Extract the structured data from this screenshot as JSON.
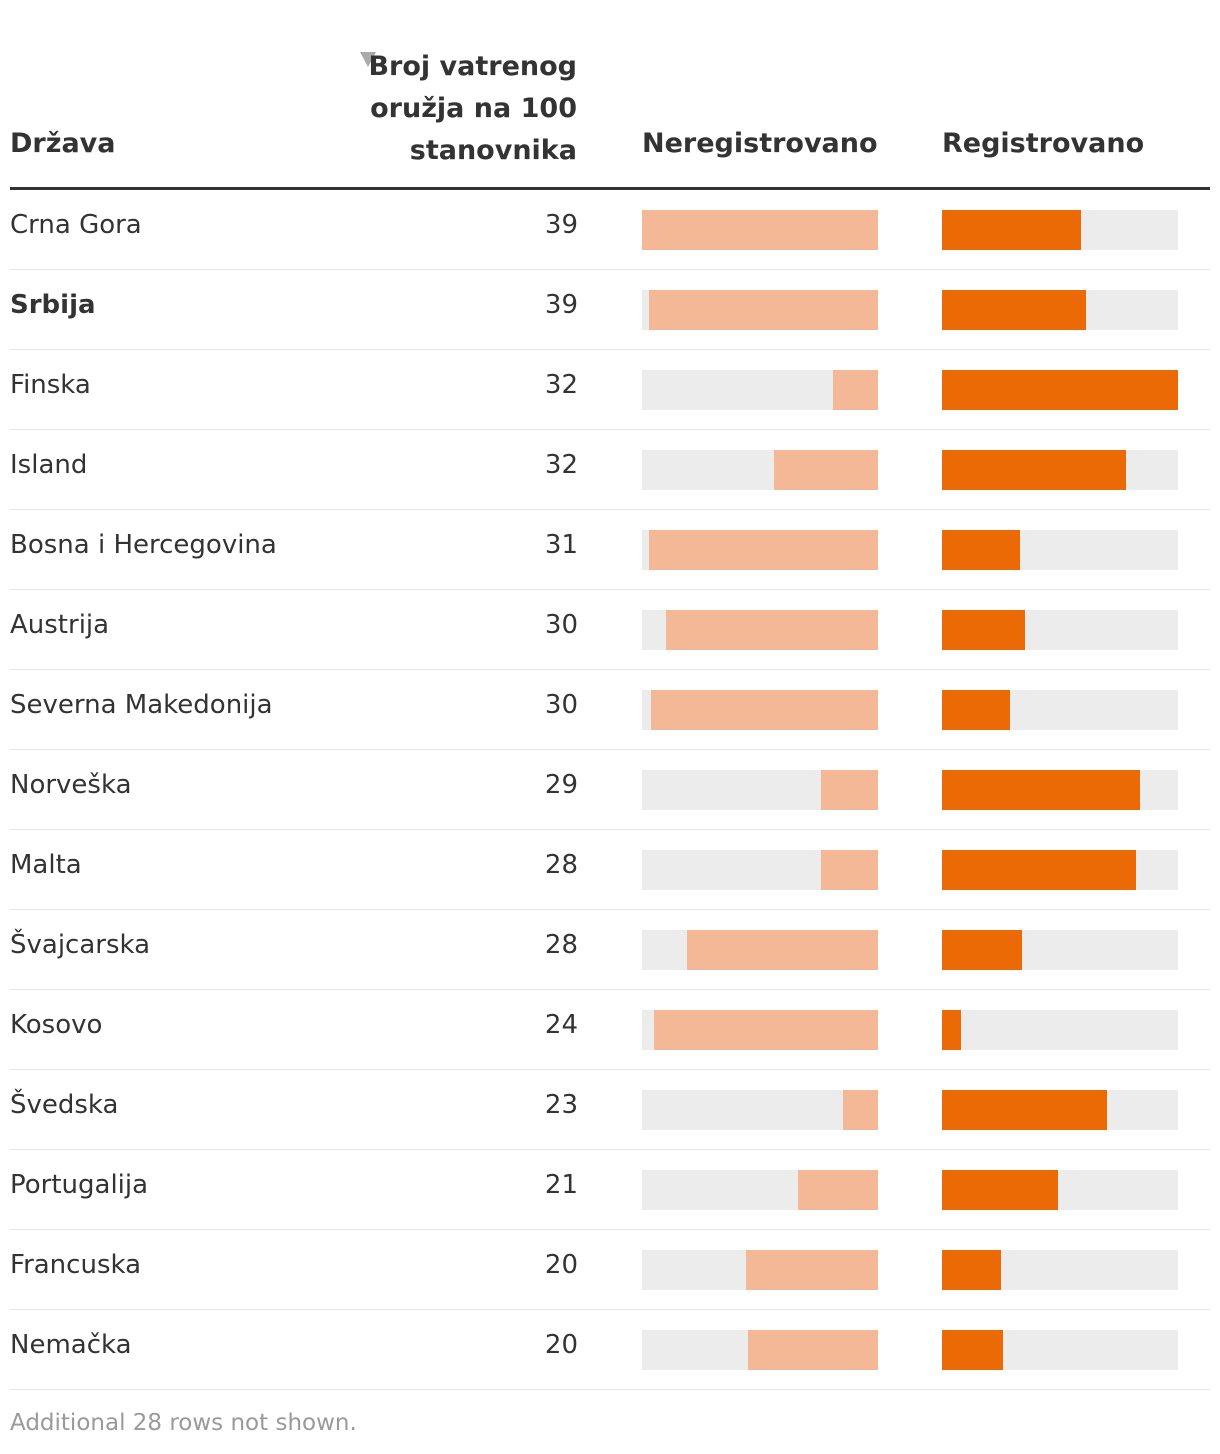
{
  "header": {
    "country_label": "Država",
    "value_label": "Broj vatrenog oružja na 100 stanovnika",
    "unregistered_label": "Neregistrovano",
    "registered_label": "Registrovano",
    "sort_icon": "sort-descending-icon"
  },
  "colors": {
    "unregistered": "#f4b896",
    "registered": "#eb6a05",
    "track": "#ececec"
  },
  "chart_data": {
    "type": "table",
    "columns": [
      "Država",
      "Broj vatrenog oružja na 100 stanovnika",
      "Neregistrovano",
      "Registrovano"
    ],
    "bar_scale": [
      0,
      100
    ],
    "rows": [
      {
        "country": "Crna Gora",
        "value": "39",
        "highlight": false,
        "unregistered_pct": 100,
        "registered_pct": 59
      },
      {
        "country": "Srbija",
        "value": "39",
        "highlight": true,
        "unregistered_pct": 97,
        "registered_pct": 61
      },
      {
        "country": "Finska",
        "value": "32",
        "highlight": false,
        "unregistered_pct": 19,
        "registered_pct": 100
      },
      {
        "country": "Island",
        "value": "32",
        "highlight": false,
        "unregistered_pct": 44,
        "registered_pct": 78
      },
      {
        "country": "Bosna i Hercegovina",
        "value": "31",
        "highlight": false,
        "unregistered_pct": 97,
        "registered_pct": 33
      },
      {
        "country": "Austrija",
        "value": "30",
        "highlight": false,
        "unregistered_pct": 90,
        "registered_pct": 35
      },
      {
        "country": "Severna Makedonija",
        "value": "30",
        "highlight": false,
        "unregistered_pct": 96,
        "registered_pct": 29
      },
      {
        "country": "Norveška",
        "value": "29",
        "highlight": false,
        "unregistered_pct": 24,
        "registered_pct": 84
      },
      {
        "country": "Malta",
        "value": "28",
        "highlight": false,
        "unregistered_pct": 24,
        "registered_pct": 82
      },
      {
        "country": "Švajcarska",
        "value": "28",
        "highlight": false,
        "unregistered_pct": 81,
        "registered_pct": 34
      },
      {
        "country": "Kosovo",
        "value": "24",
        "highlight": false,
        "unregistered_pct": 95,
        "registered_pct": 8
      },
      {
        "country": "Švedska",
        "value": "23",
        "highlight": false,
        "unregistered_pct": 15,
        "registered_pct": 70
      },
      {
        "country": "Portugalija",
        "value": "21",
        "highlight": false,
        "unregistered_pct": 34,
        "registered_pct": 49
      },
      {
        "country": "Francuska",
        "value": "20",
        "highlight": false,
        "unregistered_pct": 56,
        "registered_pct": 25
      },
      {
        "country": "Nemačka",
        "value": "20",
        "highlight": false,
        "unregistered_pct": 55,
        "registered_pct": 26
      }
    ]
  },
  "footnote": "Additional 28 rows not shown."
}
